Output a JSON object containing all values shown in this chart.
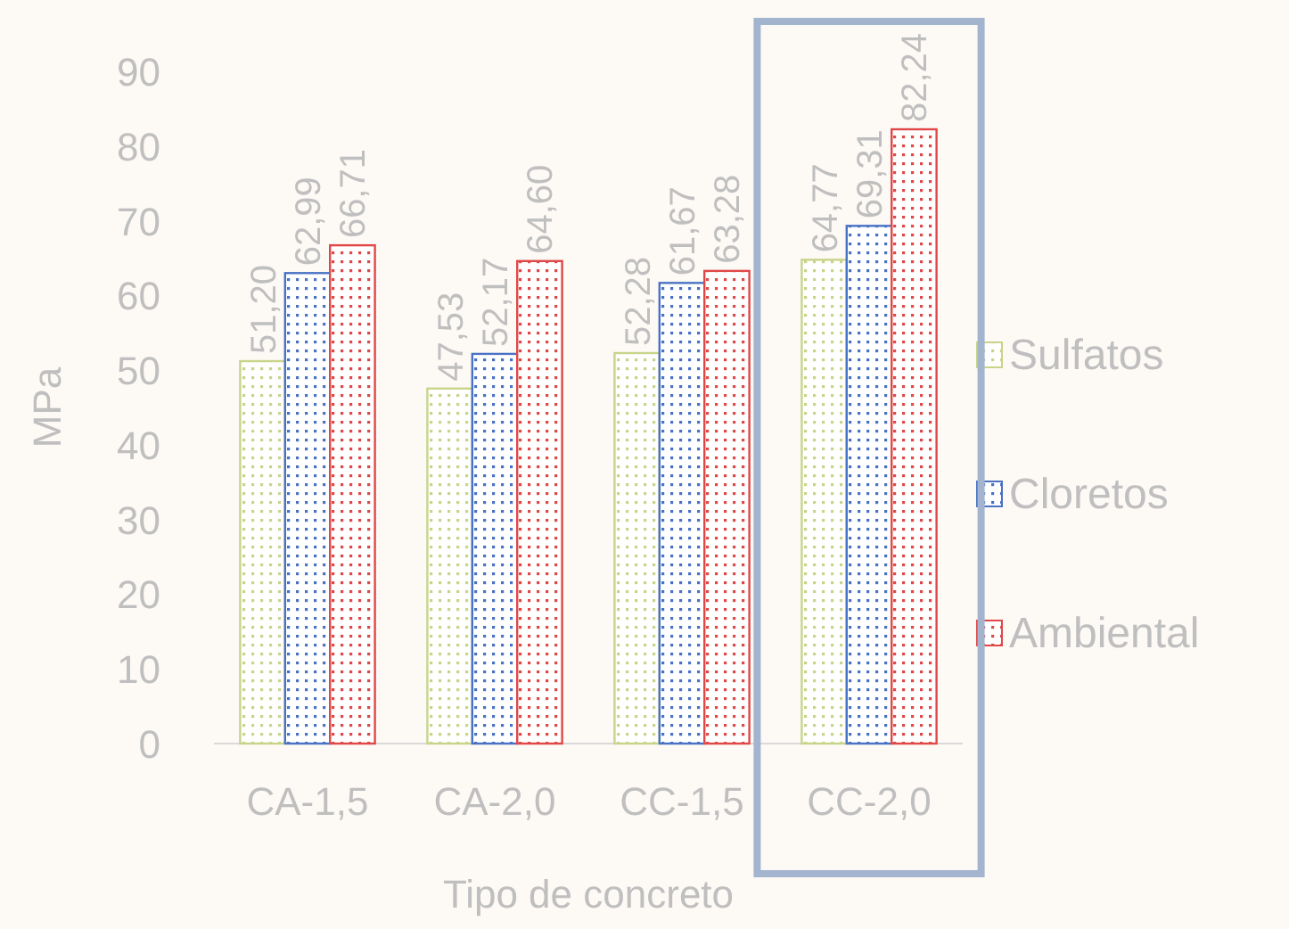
{
  "chart_data": {
    "type": "bar",
    "xlabel": "Tipo de concreto",
    "ylabel": "MPa",
    "categories": [
      "CA-1,5",
      "CA-2,0",
      "CC-1,5",
      "CC-2,0"
    ],
    "ylim": [
      0,
      90
    ],
    "yticks": [
      0,
      10,
      20,
      30,
      40,
      50,
      60,
      70,
      80,
      90
    ],
    "grid": false,
    "legend": "right",
    "series": [
      {
        "name": "Sulfatos",
        "color": "#c8d48a",
        "values": [
          51.2,
          47.53,
          52.28,
          64.77
        ],
        "value_labels": [
          "51,20",
          "47,53",
          "52,28",
          "64,77"
        ]
      },
      {
        "name": "Cloretos",
        "color": "#4a72c4",
        "values": [
          62.99,
          52.17,
          61.67,
          69.31
        ],
        "value_labels": [
          "62,99",
          "52,17",
          "61,67",
          "69,31"
        ]
      },
      {
        "name": "Ambiental",
        "color": "#e04848",
        "values": [
          66.71,
          64.6,
          63.28,
          82.24
        ],
        "value_labels": [
          "66,71",
          "64,60",
          "63,28",
          "82,24"
        ]
      }
    ]
  }
}
